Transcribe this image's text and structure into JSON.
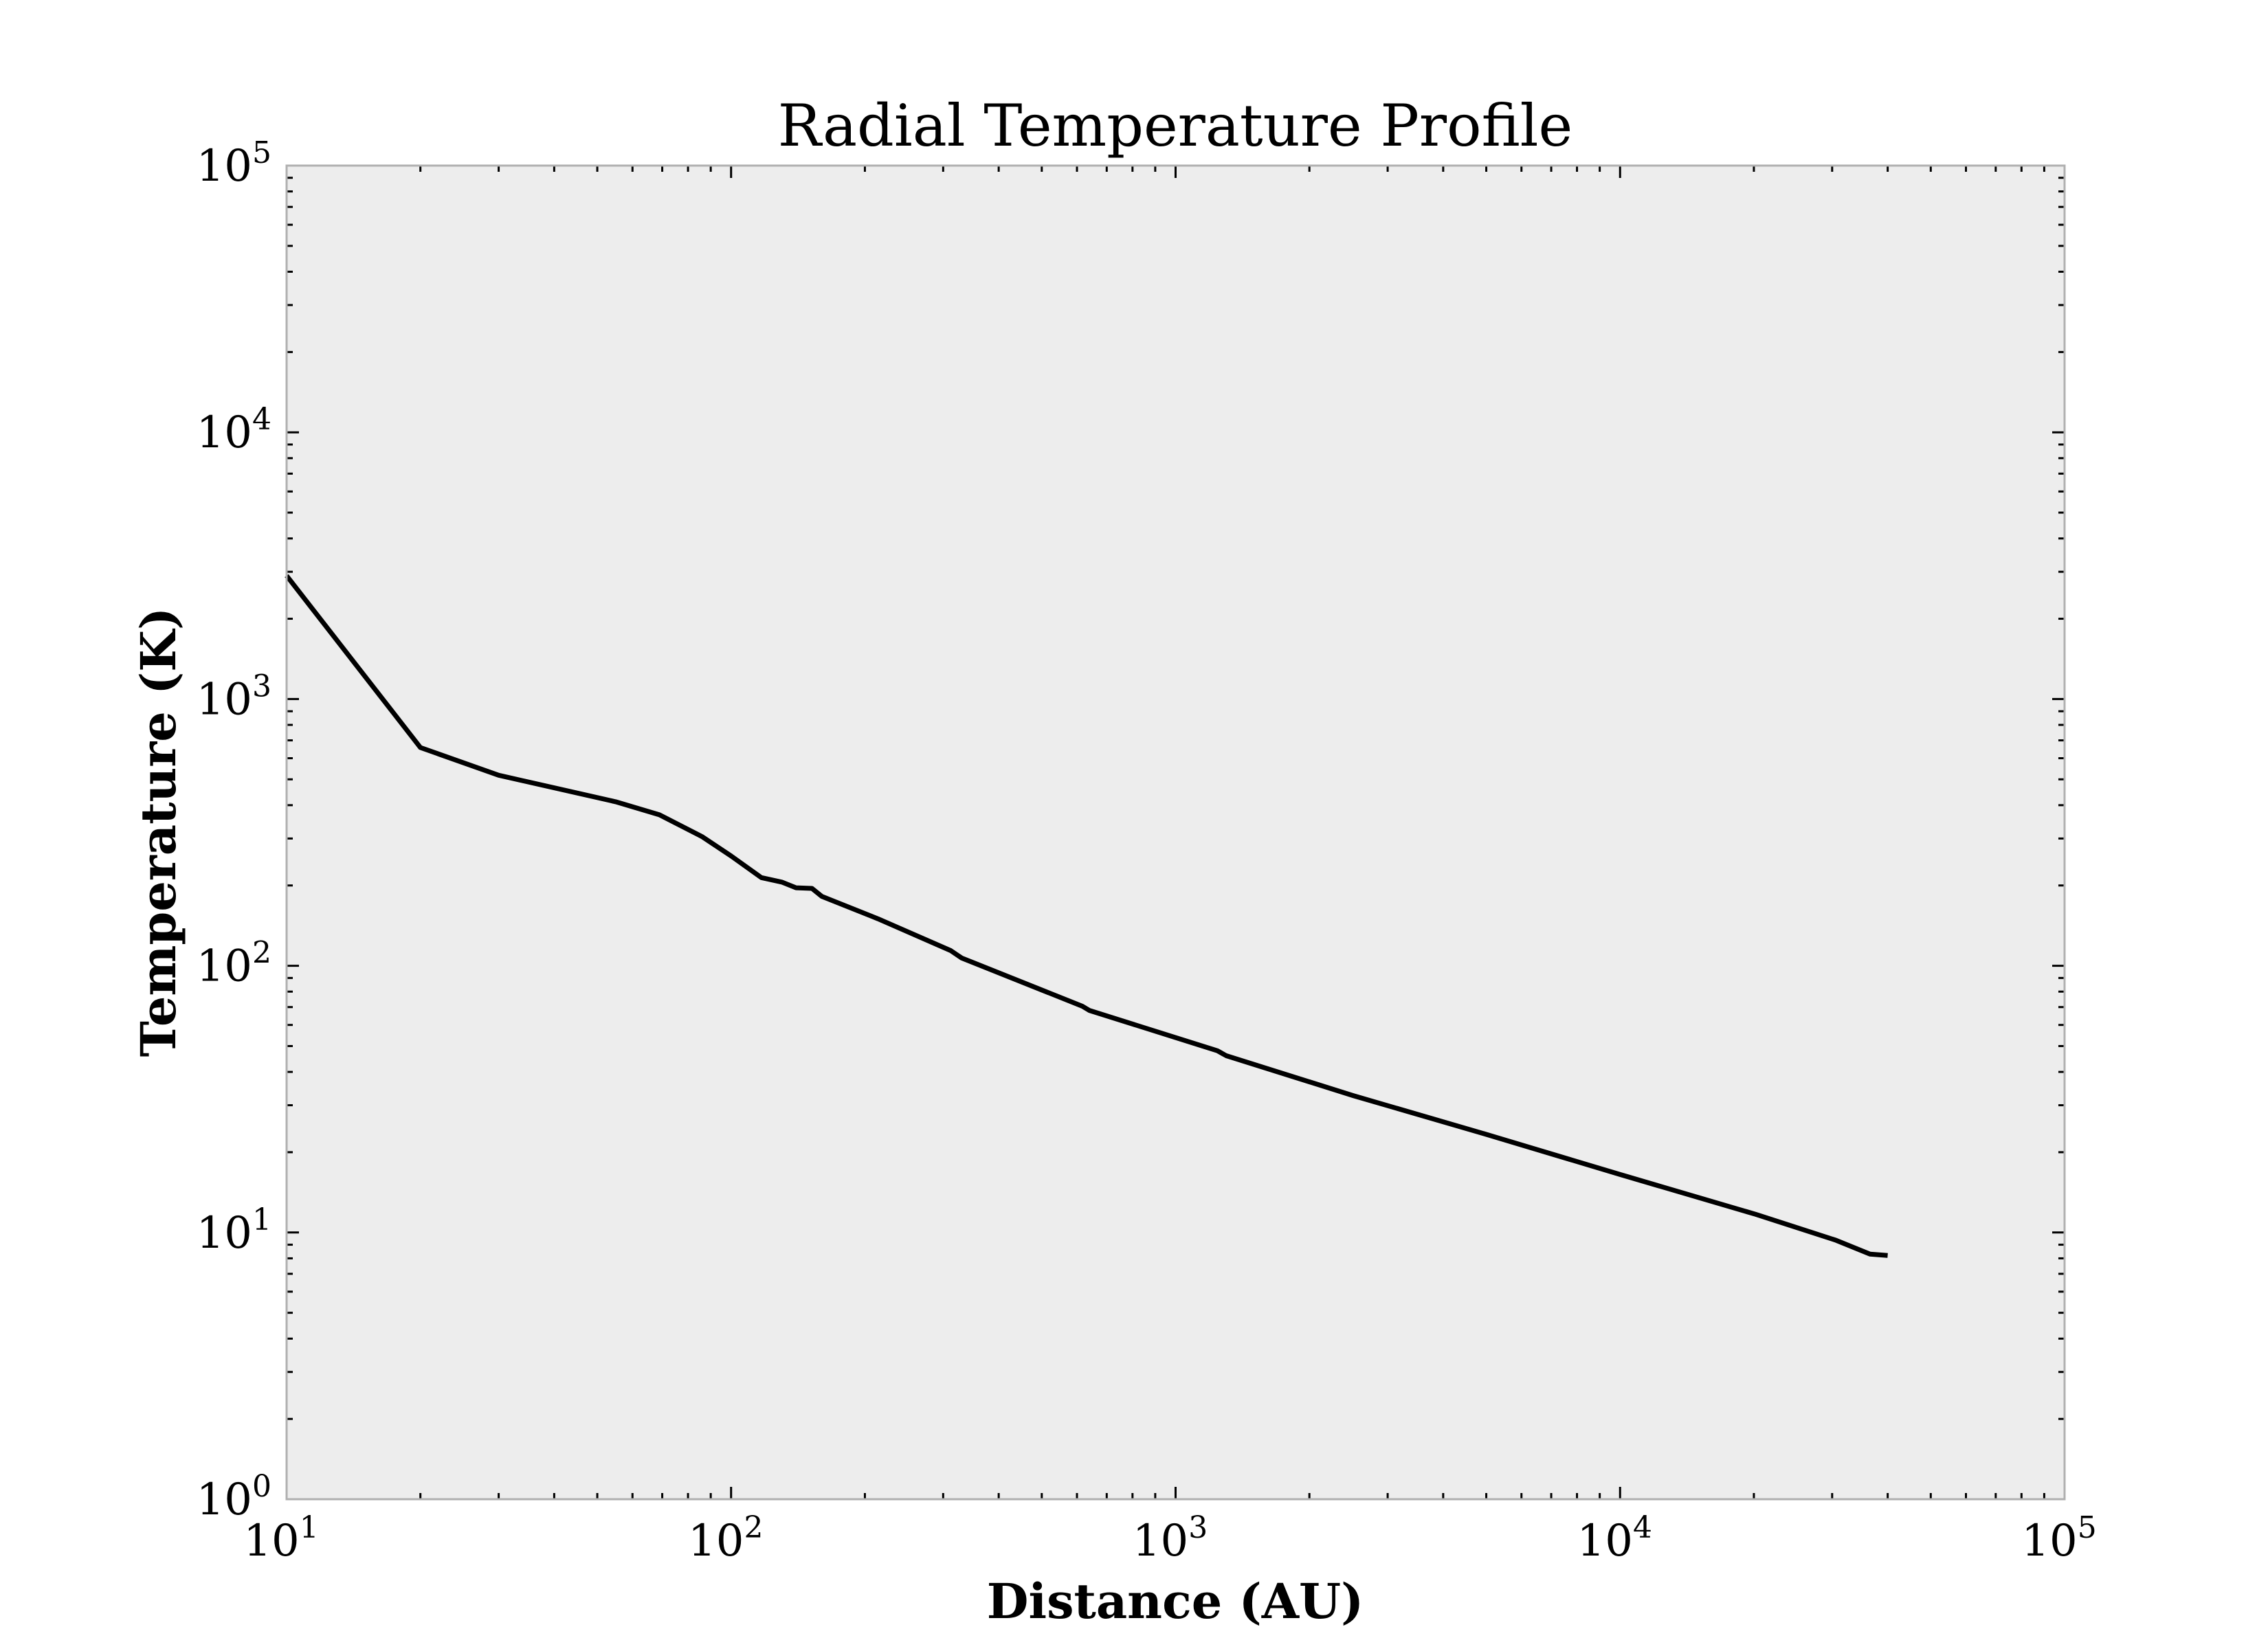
{
  "chart_data": {
    "type": "line",
    "title": "Radial Temperature Profile",
    "xlabel": "Distance (AU)",
    "ylabel": "Temperature (K)",
    "xscale": "log",
    "yscale": "log",
    "xlim": [
      10,
      100000
    ],
    "ylim": [
      1,
      100000
    ],
    "grid": false,
    "legend": "none",
    "x_ticks": [
      {
        "base": "10",
        "exp": "1"
      },
      {
        "base": "10",
        "exp": "2"
      },
      {
        "base": "10",
        "exp": "3"
      },
      {
        "base": "10",
        "exp": "4"
      },
      {
        "base": "10",
        "exp": "5"
      }
    ],
    "y_ticks": [
      {
        "base": "10",
        "exp": "0"
      },
      {
        "base": "10",
        "exp": "1"
      },
      {
        "base": "10",
        "exp": "2"
      },
      {
        "base": "10",
        "exp": "3"
      },
      {
        "base": "10",
        "exp": "4"
      },
      {
        "base": "10",
        "exp": "5"
      }
    ],
    "series": [
      {
        "name": "Temperature",
        "color": "#000000",
        "x": [
          10,
          20,
          30,
          55,
          69,
          86,
          100,
          117,
          130,
          140,
          152,
          160,
          214,
          312,
          330,
          617,
          640,
          1242,
          1300,
          2510,
          4970,
          10000,
          20180,
          30600,
          36500,
          40000
        ],
        "y": [
          2900,
          658,
          518,
          412,
          368,
          305,
          258,
          214,
          206,
          196,
          195,
          182,
          150,
          114,
          107,
          70.5,
          68,
          48,
          46,
          32.6,
          23.4,
          16.5,
          11.7,
          9.35,
          8.3,
          8.2
        ]
      }
    ],
    "colors": {
      "axes_bg": "#ededed",
      "spine": "#b0b0b0"
    }
  }
}
